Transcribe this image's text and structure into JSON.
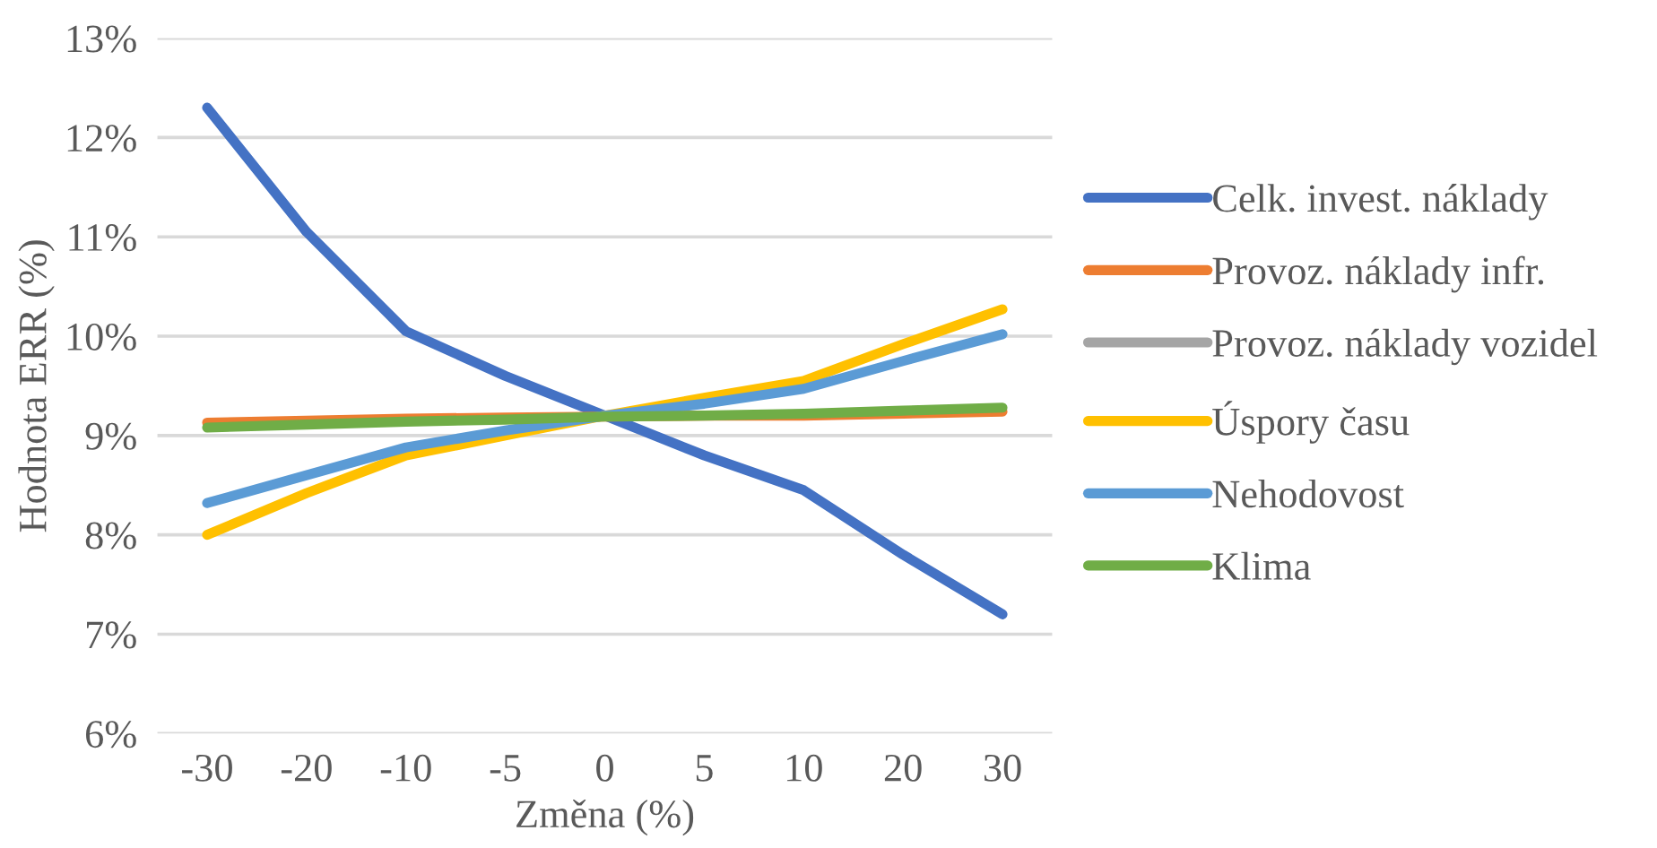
{
  "chart_data": {
    "type": "line",
    "xlabel": "Změna (%)",
    "ylabel": "Hodnota ERR (%)",
    "categories": [
      "-30",
      "-20",
      "-10",
      "-5",
      "0",
      "5",
      "10",
      "20",
      "30"
    ],
    "series": [
      {
        "name": "Celk. invest. náklady",
        "color": "#4472c4",
        "values": [
          12.3,
          11.05,
          10.05,
          9.6,
          9.2,
          8.8,
          8.45,
          7.8,
          7.2
        ]
      },
      {
        "name": "Provoz. náklady infr.",
        "color": "#ed7d31",
        "values": [
          9.13,
          9.15,
          9.17,
          9.18,
          9.19,
          9.2,
          9.2,
          9.22,
          9.24
        ]
      },
      {
        "name": "Provoz. náklady vozidel",
        "color": "#a5a5a5",
        "values": [
          null,
          null,
          null,
          null,
          null,
          null,
          null,
          null,
          null
        ]
      },
      {
        "name": "Úspory času",
        "color": "#ffc000",
        "values": [
          8.0,
          8.42,
          8.8,
          9.0,
          9.2,
          9.38,
          9.55,
          9.92,
          10.27
        ]
      },
      {
        "name": "Nehodovost",
        "color": "#5b9bd5",
        "values": [
          8.32,
          8.6,
          8.88,
          9.05,
          9.2,
          9.32,
          9.47,
          9.75,
          10.02
        ]
      },
      {
        "name": "Klima",
        "color": "#70ad47",
        "values": [
          9.08,
          9.11,
          9.14,
          9.16,
          9.19,
          9.2,
          9.22,
          9.25,
          9.28
        ]
      }
    ],
    "ylim": [
      6,
      13
    ],
    "yticks": [
      {
        "value": 6,
        "label": "6%"
      },
      {
        "value": 7,
        "label": "7%"
      },
      {
        "value": 8,
        "label": "8%"
      },
      {
        "value": 9,
        "label": "9%"
      },
      {
        "value": 10,
        "label": "10%"
      },
      {
        "value": 11,
        "label": "11%"
      },
      {
        "value": 12,
        "label": "12%"
      },
      {
        "value": 13,
        "label": "13%"
      }
    ],
    "grid": "y",
    "legend": "right",
    "marker": "none",
    "line_style": "solid"
  }
}
